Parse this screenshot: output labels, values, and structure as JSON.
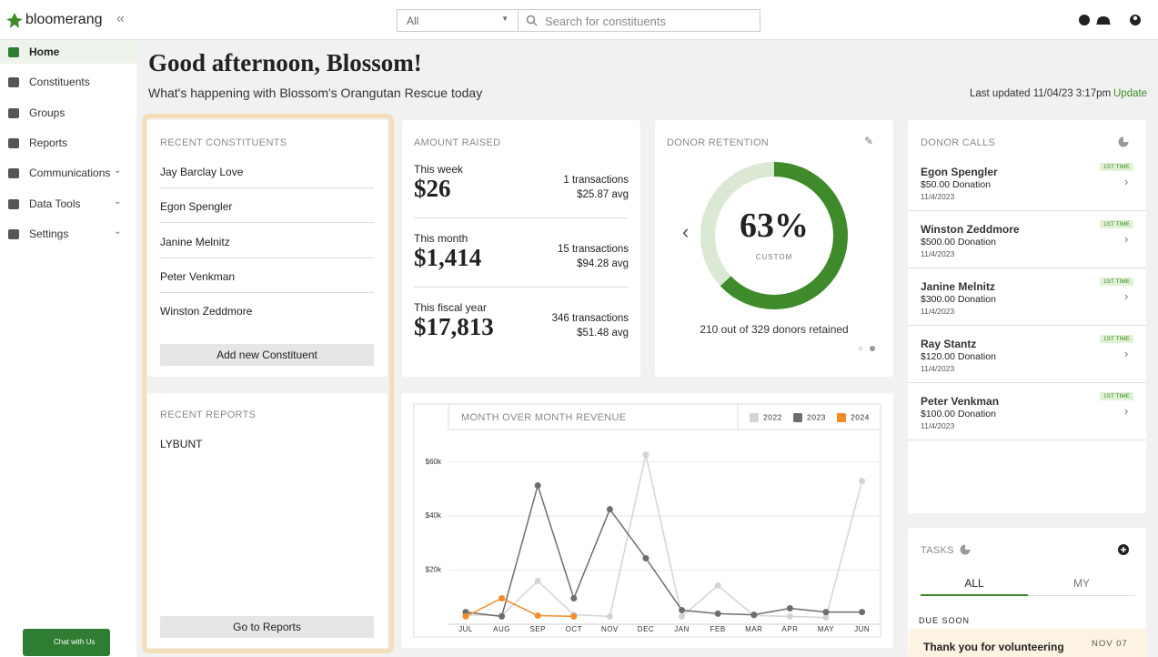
{
  "brand": "bloomerang",
  "search": {
    "filter": "All",
    "placeholder": "Search for constituents"
  },
  "nav": [
    {
      "label": "Home"
    },
    {
      "label": "Constituents"
    },
    {
      "label": "Groups"
    },
    {
      "label": "Reports"
    },
    {
      "label": "Communications"
    },
    {
      "label": "Data Tools"
    },
    {
      "label": "Settings"
    }
  ],
  "greeting": {
    "title": "Good afternoon, Blossom!",
    "subtitle": "What's happening with Blossom's Orangutan Rescue today",
    "last_updated": "Last updated 11/04/23 3:17pm",
    "update": "Update"
  },
  "recent_constituents": {
    "title": "RECENT CONSTITUENTS",
    "items": [
      "Jay Barclay Love",
      "Egon Spengler",
      "Janine Melnitz",
      "Peter Venkman",
      "Winston Zeddmore"
    ],
    "button": "Add new Constituent"
  },
  "recent_reports": {
    "title": "RECENT REPORTS",
    "items": [
      "LYBUNT"
    ],
    "button": "Go to Reports"
  },
  "amount_raised": {
    "title": "AMOUNT RAISED",
    "rows": [
      {
        "period": "This week",
        "amount": "$26",
        "transactions": "1 transactions",
        "avg": "$25.87 avg"
      },
      {
        "period": "This month",
        "amount": "$1,414",
        "transactions": "15 transactions",
        "avg": "$94.28 avg"
      },
      {
        "period": "This fiscal year",
        "amount": "$17,813",
        "transactions": "346 transactions",
        "avg": "$51.48 avg"
      }
    ]
  },
  "donor_retention": {
    "title": "DONOR RETENTION",
    "value": 63,
    "value_label": "63%",
    "sub": "CUSTOM",
    "caption": "210 out of 329 donors retained"
  },
  "donor_calls": {
    "title": "DONOR CALLS",
    "items": [
      {
        "name": "Egon Spengler",
        "amount": "$50.00 Donation",
        "date": "11/4/2023",
        "badge": "1ST TIME"
      },
      {
        "name": "Winston Zeddmore",
        "amount": "$500.00 Donation",
        "date": "11/4/2023",
        "badge": "1ST TIME"
      },
      {
        "name": "Janine Melnitz",
        "amount": "$300.00 Donation",
        "date": "11/4/2023",
        "badge": "1ST TIME"
      },
      {
        "name": "Ray Stantz",
        "amount": "$120.00 Donation",
        "date": "11/4/2023",
        "badge": "1ST TIME"
      },
      {
        "name": "Peter Venkman",
        "amount": "$100.00 Donation",
        "date": "11/4/2023",
        "badge": "1ST TIME"
      }
    ]
  },
  "tasks": {
    "title": "TASKS",
    "tabs": [
      "ALL",
      "MY"
    ],
    "section": "DUE SOON",
    "items": [
      {
        "title": "Thank you for volunteering",
        "date": "NOV 07"
      }
    ]
  },
  "chat": "Chat with Us",
  "chart_data": {
    "type": "line",
    "title": "MONTH OVER MONTH REVENUE",
    "categories": [
      "JUL",
      "AUG",
      "SEP",
      "OCT",
      "NOV",
      "DEC",
      "JAN",
      "FEB",
      "MAR",
      "APR",
      "MAY",
      "JUN"
    ],
    "series": [
      {
        "name": "2022",
        "color": "#d4d4d4",
        "values": [
          3500,
          3200,
          16000,
          3500,
          2900,
          62700,
          2900,
          14300,
          3200,
          2900,
          2500,
          52900
        ]
      },
      {
        "name": "2023",
        "color": "#6e6e6e",
        "values": [
          4500,
          2900,
          51300,
          9600,
          42500,
          24400,
          5200,
          3900,
          3500,
          5900,
          4500,
          4500
        ]
      },
      {
        "name": "2024",
        "color": "#f28c28",
        "values": [
          2900,
          9600,
          3200,
          2900,
          null,
          null,
          null,
          null,
          null,
          null,
          null,
          null
        ]
      }
    ],
    "ylim": [
      0,
      72000
    ],
    "yticks": [
      {
        "value": 20000,
        "label": "$20k"
      },
      {
        "value": 40000,
        "label": "$40k"
      },
      {
        "value": 60000,
        "label": "$60k"
      }
    ],
    "grid": true
  }
}
